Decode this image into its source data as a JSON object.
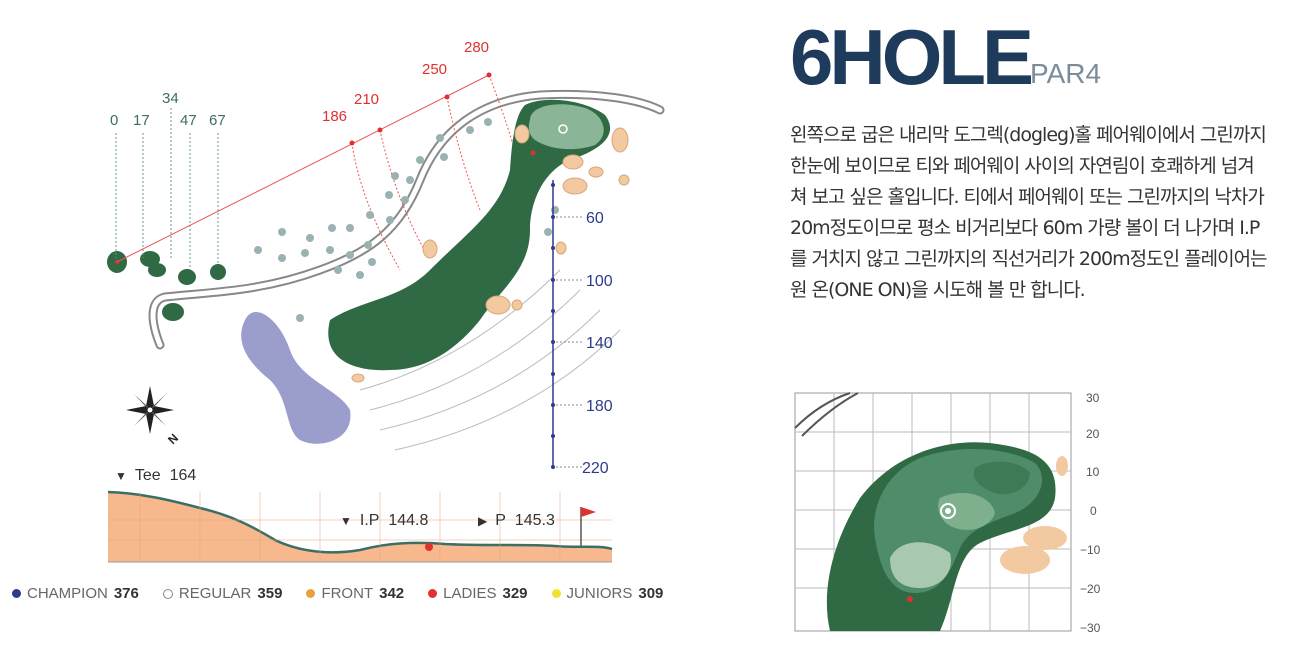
{
  "hole": {
    "title": "6HOLE",
    "par": "PAR4"
  },
  "description": "왼쪽으로 굽은 내리막 도그렉(dogleg)홀 페어웨이에서 그린까지 한눈에 보이므로 티와 페어웨이 사이의 자연림이 호쾌하게 넘겨 쳐 보고 싶은 홀입니다. 티에서 페어웨이 또는 그린까지의 낙차가 20m정도이므로 평소 비거리보다 60m 가량 볼이 더 나가며 I.P를 거치지 않고 그린까지의 직선거리가 200m정도인 플레이어는 원 온(ONE ON)을 시도해 볼 만 합니다.",
  "tee_markers": [
    "0",
    "17",
    "34",
    "47",
    "67"
  ],
  "distance_markers": [
    "186",
    "210",
    "250",
    "280"
  ],
  "yardage_scale": [
    "60",
    "100",
    "140",
    "180",
    "220"
  ],
  "profile": {
    "tee": {
      "label": "Tee",
      "value": "164"
    },
    "ip": {
      "label": "I.P",
      "value": "144.8"
    },
    "pin": {
      "label": "P",
      "value": "145.3"
    }
  },
  "green_scale": [
    "30",
    "20",
    "10",
    "0",
    "−10",
    "−20",
    "−30"
  ],
  "compass": {
    "label": "N",
    "icon": "compass-icon"
  },
  "legend": [
    {
      "name": "CHAMPION",
      "value": "376",
      "color": "#2e3a8c",
      "hollow": false
    },
    {
      "name": "REGULAR",
      "value": "359",
      "color": "#ffffff",
      "hollow": true
    },
    {
      "name": "FRONT",
      "value": "342",
      "color": "#e8a13a",
      "hollow": false
    },
    {
      "name": "LADIES",
      "value": "329",
      "color": "#e03030",
      "hollow": false
    },
    {
      "name": "JUNIORS",
      "value": "309",
      "color": "#f2e230",
      "hollow": false
    }
  ],
  "colors": {
    "fairway": "#2f6a45",
    "green": "#8ab597",
    "bunker": "#f2c9a0",
    "water": "#8a8cc4",
    "profile_fill": "#f6b88c",
    "profile_line": "#3b6f66",
    "title": "#1f3b5c"
  }
}
